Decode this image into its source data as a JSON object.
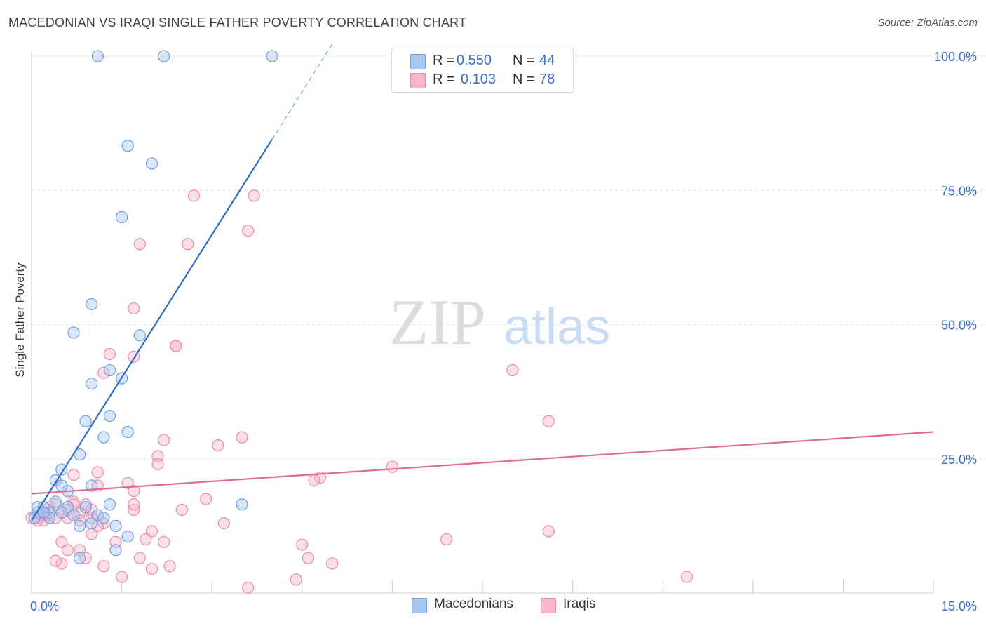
{
  "title": "MACEDONIAN VS IRAQI SINGLE FATHER POVERTY CORRELATION CHART",
  "source": "Source: ZipAtlas.com",
  "watermark": {
    "zip": "ZIP",
    "atlas": "atlas"
  },
  "legend": {
    "rows": [
      {
        "r_label": "R =",
        "r_value": "0.550",
        "n_label": "N =",
        "n_value": "44"
      },
      {
        "r_label": "R =",
        "r_value": "0.103",
        "n_label": "N =",
        "n_value": "78"
      }
    ]
  },
  "bottom_legend": [
    "Macedonians",
    "Iraqis"
  ],
  "colors": {
    "blue_fill": "#a9c8f0",
    "blue_stroke": "#6d9fe0",
    "blue_line": "#2d6fc8",
    "pink_fill": "#f7b8cc",
    "pink_stroke": "#e98aa8",
    "pink_line": "#e06a93",
    "axis_text": "#3a6fc4",
    "grid": "#e2e2e2"
  },
  "chart_data": {
    "type": "scatter",
    "title": "MACEDONIAN VS IRAQI SINGLE FATHER POVERTY CORRELATION CHART",
    "xlabel": "",
    "ylabel": "Single Father Poverty",
    "xlim": [
      0,
      15
    ],
    "ylim": [
      0,
      100
    ],
    "x_tick_labels": [
      "0.0%",
      "15.0%"
    ],
    "y_ticks": [
      25,
      50,
      75,
      100
    ],
    "y_tick_labels": [
      "25.0%",
      "50.0%",
      "75.0%",
      "100.0%"
    ],
    "grid": true,
    "series": [
      {
        "name": "Macedonians",
        "r": 0.55,
        "n": 44,
        "trend": {
          "x0": 0.0,
          "y0": 13.5,
          "x1": 4.0,
          "y1": 84.5,
          "dash_to_x": 5.0
        },
        "points": [
          [
            1.1,
            100
          ],
          [
            2.2,
            100
          ],
          [
            4.0,
            100
          ],
          [
            1.6,
            83.3
          ],
          [
            2.0,
            80
          ],
          [
            1.5,
            70
          ],
          [
            1.0,
            53.8
          ],
          [
            0.7,
            48.5
          ],
          [
            1.8,
            48
          ],
          [
            1.3,
            41.5
          ],
          [
            1.5,
            40
          ],
          [
            1.0,
            39
          ],
          [
            0.9,
            32
          ],
          [
            1.3,
            33
          ],
          [
            1.6,
            30
          ],
          [
            1.2,
            29
          ],
          [
            0.8,
            25.8
          ],
          [
            0.5,
            23
          ],
          [
            0.4,
            21
          ],
          [
            0.6,
            19
          ],
          [
            0.5,
            20
          ],
          [
            1.0,
            20
          ],
          [
            1.3,
            16.5
          ],
          [
            1.1,
            14.5
          ],
          [
            0.9,
            16
          ],
          [
            0.6,
            16
          ],
          [
            0.4,
            17
          ],
          [
            0.3,
            15
          ],
          [
            0.2,
            16
          ],
          [
            0.1,
            15
          ],
          [
            0.05,
            14
          ],
          [
            0.3,
            14
          ],
          [
            0.5,
            15
          ],
          [
            0.7,
            14.5
          ],
          [
            0.8,
            12.5
          ],
          [
            1.0,
            13
          ],
          [
            1.2,
            14
          ],
          [
            1.4,
            12.5
          ],
          [
            1.6,
            10.5
          ],
          [
            1.4,
            8
          ],
          [
            0.8,
            6.5
          ],
          [
            3.5,
            16.5
          ],
          [
            0.1,
            16
          ],
          [
            0.2,
            15
          ]
        ]
      },
      {
        "name": "Iraqis",
        "r": 0.103,
        "n": 78,
        "trend": {
          "x0": 0.0,
          "y0": 18.5,
          "x1": 15.0,
          "y1": 30.0
        },
        "points": [
          [
            2.7,
            74
          ],
          [
            3.7,
            74
          ],
          [
            3.6,
            67.5
          ],
          [
            1.8,
            65
          ],
          [
            2.6,
            65
          ],
          [
            1.7,
            53
          ],
          [
            2.4,
            46
          ],
          [
            2.4,
            46
          ],
          [
            1.3,
            44.5
          ],
          [
            1.7,
            44
          ],
          [
            1.2,
            41
          ],
          [
            8.0,
            41.5
          ],
          [
            8.6,
            32
          ],
          [
            3.5,
            29
          ],
          [
            2.2,
            28.5
          ],
          [
            3.1,
            27.5
          ],
          [
            2.1,
            25.5
          ],
          [
            2.1,
            24
          ],
          [
            6.0,
            23.5
          ],
          [
            1.1,
            22.5
          ],
          [
            0.7,
            22
          ],
          [
            1.6,
            20.5
          ],
          [
            1.1,
            20
          ],
          [
            4.8,
            21.5
          ],
          [
            4.7,
            21
          ],
          [
            1.7,
            19
          ],
          [
            1.7,
            15.5
          ],
          [
            1.7,
            16.5
          ],
          [
            2.5,
            15.5
          ],
          [
            2.9,
            17.5
          ],
          [
            0.9,
            16.5
          ],
          [
            0.7,
            17
          ],
          [
            0.5,
            15
          ],
          [
            0.4,
            16.5
          ],
          [
            0.3,
            14.5
          ],
          [
            0.2,
            13.5
          ],
          [
            0.2,
            15
          ],
          [
            0.1,
            14
          ],
          [
            0.0,
            14
          ],
          [
            0.3,
            15
          ],
          [
            0.6,
            14
          ],
          [
            0.8,
            15
          ],
          [
            1.0,
            14
          ],
          [
            1.2,
            13
          ],
          [
            1.0,
            11
          ],
          [
            1.1,
            12.5
          ],
          [
            0.5,
            9.5
          ],
          [
            0.6,
            8
          ],
          [
            0.8,
            8
          ],
          [
            0.9,
            6.5
          ],
          [
            0.5,
            5.5
          ],
          [
            0.4,
            6
          ],
          [
            1.4,
            9.5
          ],
          [
            2.0,
            11.5
          ],
          [
            1.9,
            10
          ],
          [
            2.2,
            9.5
          ],
          [
            3.2,
            13
          ],
          [
            6.9,
            10
          ],
          [
            8.6,
            11.5
          ],
          [
            4.5,
            9
          ],
          [
            4.6,
            6.5
          ],
          [
            5.0,
            5.5
          ],
          [
            1.8,
            6.5
          ],
          [
            1.2,
            5
          ],
          [
            2.3,
            5
          ],
          [
            2.0,
            4.5
          ],
          [
            1.5,
            3
          ],
          [
            3.6,
            1
          ],
          [
            4.4,
            2.5
          ],
          [
            10.9,
            3
          ],
          [
            0.7,
            16.5
          ],
          [
            0.4,
            14
          ],
          [
            0.6,
            15.5
          ],
          [
            0.2,
            14.5
          ],
          [
            0.8,
            13.5
          ],
          [
            1.0,
            15.5
          ],
          [
            0.1,
            13.5
          ],
          [
            0.3,
            16
          ]
        ]
      }
    ]
  }
}
